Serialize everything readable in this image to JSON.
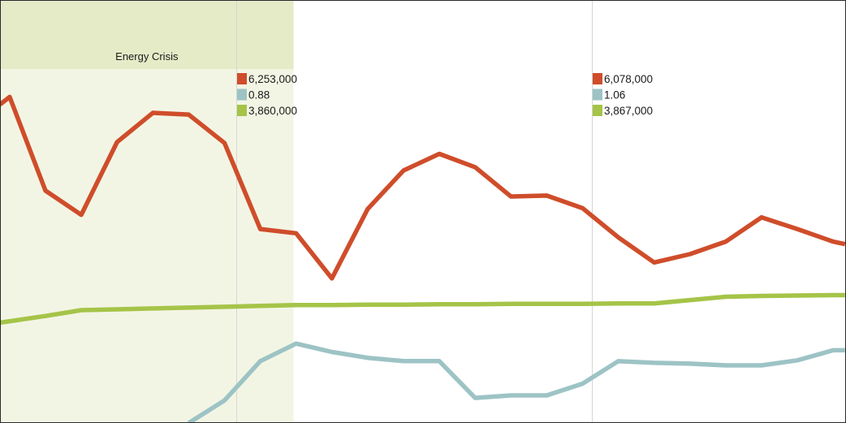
{
  "chart_data": {
    "type": "line",
    "annotations": [
      {
        "label": "Energy Crisis",
        "x_start": 0,
        "x_end": 8.2,
        "header_color": "#e5ebc7",
        "body_color": "#f3f5e4"
      }
    ],
    "x_range": [
      0,
      23.6
    ],
    "ylim": [
      -0.5,
      9.62
    ],
    "grid": false,
    "series": [
      {
        "color": "#cf4d2a",
        "x": [
          0,
          0.27,
          1.27,
          2.27,
          3.27,
          4.27,
          5.27,
          6.27,
          7.27,
          8.27,
          9.27,
          10.27,
          11.27,
          12.27,
          13.27,
          14.27,
          15.27,
          16.27,
          17.27,
          18.27,
          19.27,
          20.27,
          21.27,
          22.27,
          23.27,
          23.6
        ],
        "values": [
          7.12,
          7.3,
          5.06,
          4.48,
          6.22,
          6.92,
          6.88,
          6.2,
          4.14,
          4.04,
          2.96,
          4.62,
          5.54,
          5.94,
          5.62,
          4.92,
          4.94,
          4.64,
          3.94,
          3.34,
          3.54,
          3.84,
          4.42,
          4.14,
          3.84,
          3.78
        ]
      },
      {
        "color": "#a5c448",
        "x": [
          0,
          1.27,
          2.27,
          3.27,
          4.27,
          5.27,
          6.27,
          7.27,
          8.27,
          9.27,
          10.27,
          11.27,
          12.27,
          13.27,
          14.27,
          15.27,
          16.27,
          17.27,
          18.27,
          19.27,
          20.27,
          21.27,
          22.27,
          23.27,
          23.6
        ],
        "values": [
          1.9,
          2.06,
          2.2,
          2.22,
          2.24,
          2.26,
          2.28,
          2.3,
          2.32,
          2.32,
          2.33,
          2.33,
          2.34,
          2.34,
          2.35,
          2.35,
          2.35,
          2.36,
          2.36,
          2.44,
          2.52,
          2.54,
          2.55,
          2.56,
          2.56
        ]
      },
      {
        "color": "#9dc3c5",
        "x": [
          5.27,
          6.27,
          7.27,
          8.27,
          9.27,
          10.27,
          11.27,
          12.27,
          13.27,
          14.27,
          15.27,
          16.27,
          17.27,
          18.27,
          19.27,
          20.27,
          21.27,
          22.27,
          23.27,
          23.6
        ],
        "values": [
          -0.5,
          0.04,
          0.98,
          1.4,
          1.2,
          1.06,
          0.98,
          0.98,
          0.1,
          0.16,
          0.16,
          0.44,
          0.98,
          0.94,
          0.92,
          0.88,
          0.88,
          1.0,
          1.24,
          1.24
        ]
      }
    ],
    "hover_markers": [
      {
        "x": 6.6,
        "tooltip": [
          "6,253,000",
          "0.88",
          "3,860,000"
        ]
      },
      {
        "x": 16.53,
        "tooltip": [
          "6,078,000",
          "1.06",
          "3,867,000"
        ]
      }
    ]
  }
}
